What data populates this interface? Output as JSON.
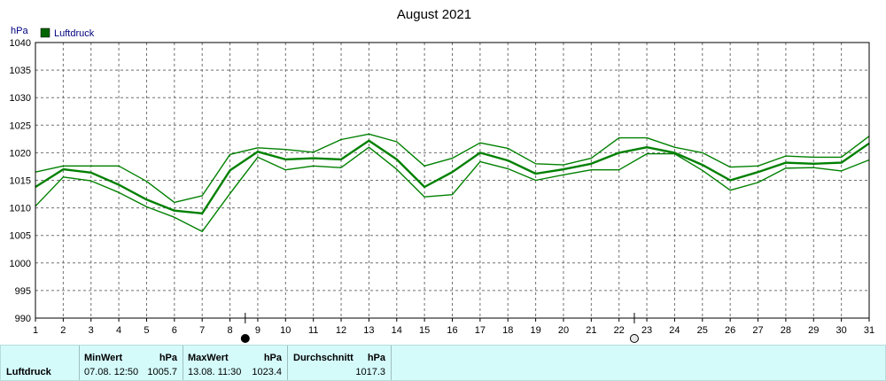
{
  "chart_data": {
    "type": "line",
    "title": "August 2021",
    "ylabel": "hPa",
    "ylim": [
      990,
      1040
    ],
    "yticks": [
      990,
      995,
      1000,
      1005,
      1010,
      1015,
      1020,
      1025,
      1030,
      1035,
      1040
    ],
    "x": [
      1,
      2,
      3,
      4,
      5,
      6,
      7,
      8,
      9,
      10,
      11,
      12,
      13,
      14,
      15,
      16,
      17,
      18,
      19,
      20,
      21,
      22,
      23,
      24,
      25,
      26,
      27,
      28,
      29,
      30,
      31
    ],
    "legend": "Luftdruck",
    "grid": true,
    "series": [
      {
        "name": "Luftdruck",
        "role": "max",
        "values": [
          1016.5,
          1017.6,
          1017.6,
          1017.6,
          1014.8,
          1011.0,
          1012.2,
          1019.7,
          1020.9,
          1020.6,
          1020.1,
          1022.4,
          1023.4,
          1022.0,
          1017.6,
          1019.0,
          1021.8,
          1020.8,
          1018.0,
          1017.8,
          1019.0,
          1022.7,
          1022.7,
          1021.0,
          1020.0,
          1017.4,
          1017.6,
          1019.4,
          1019.2,
          1019.2,
          1023.0
        ]
      },
      {
        "name": "Luftdruck",
        "role": "mean",
        "values": [
          1013.8,
          1017.0,
          1016.4,
          1014.2,
          1011.5,
          1009.5,
          1009.0,
          1016.8,
          1020.2,
          1018.8,
          1019.0,
          1018.8,
          1022.2,
          1018.8,
          1013.8,
          1016.5,
          1020.0,
          1018.6,
          1016.2,
          1017.0,
          1018.0,
          1020.0,
          1021.0,
          1020.0,
          1017.8,
          1015.0,
          1016.5,
          1018.2,
          1018.0,
          1018.2,
          1021.7
        ]
      },
      {
        "name": "Luftdruck",
        "role": "min",
        "values": [
          1010.3,
          1015.6,
          1014.9,
          1012.8,
          1010.2,
          1008.3,
          1005.7,
          1012.6,
          1019.2,
          1016.9,
          1017.6,
          1017.3,
          1021.0,
          1017.0,
          1012.0,
          1012.4,
          1018.4,
          1017.1,
          1015.0,
          1016.0,
          1016.9,
          1016.9,
          1019.8,
          1019.8,
          1016.8,
          1013.2,
          1014.6,
          1017.2,
          1017.3,
          1016.7,
          1018.7
        ]
      }
    ],
    "marker_days": [
      9,
      23
    ]
  },
  "stats": {
    "row_label": "Luftdruck",
    "min_header": "MinWert",
    "min_unit": "hPa",
    "min_time": "07.08.  12:50",
    "min_value": "1005.7",
    "max_header": "MaxWert",
    "max_unit": "hPa",
    "max_time": "13.08.  11:30",
    "max_value": "1023.4",
    "avg_header": "Durchschnitt",
    "avg_unit": "hPa",
    "avg_value": "1017.3"
  },
  "colors": {
    "line": "#008000",
    "legend_box": "#006400",
    "grid": "#707070",
    "panel": "#d4fafa"
  }
}
